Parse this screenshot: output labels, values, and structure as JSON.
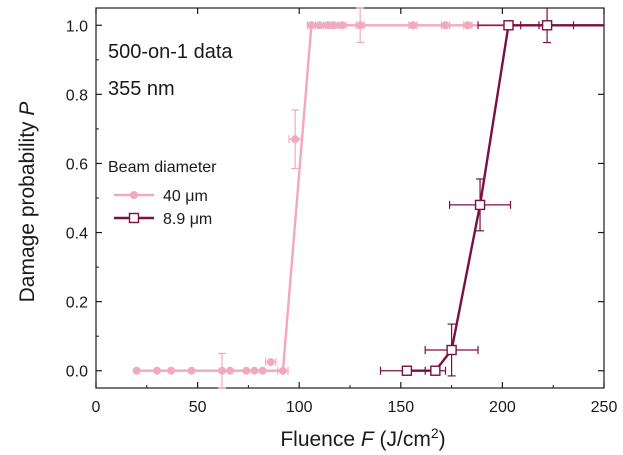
{
  "chart_data": {
    "type": "scatter",
    "annotations": [
      "500-on-1 data",
      "355 nm"
    ],
    "xlabel": {
      "prefix": "Fluence ",
      "symbol": "F",
      "unit_pre": " (J/cm",
      "unit_sup": "2",
      "unit_post": ")"
    },
    "ylabel": {
      "prefix": "Damage probability ",
      "symbol": "P"
    },
    "xlim": [
      0,
      250
    ],
    "ylim": [
      -0.05,
      1.05
    ],
    "xticks": [
      0,
      50,
      100,
      150,
      200,
      250
    ],
    "xtick_labels": [
      "0",
      "50",
      "100",
      "150",
      "200",
      "250"
    ],
    "yticks": [
      0.0,
      0.2,
      0.4,
      0.6,
      0.8,
      1.0
    ],
    "ytick_labels": [
      "0.0",
      "0.2",
      "0.4",
      "0.6",
      "0.8",
      "1.0"
    ],
    "legend": {
      "title": "Beam diameter",
      "placement": "center-left"
    },
    "grid": false,
    "series": [
      {
        "name": "40 μm",
        "color": "#f2a9bd",
        "marker": "filled-circle",
        "line": {
          "x": [
            20,
            92,
            106,
            250
          ],
          "y": [
            0,
            0,
            1,
            1
          ]
        },
        "points": [
          {
            "x": 20,
            "y": 0,
            "xerr": 0,
            "yerr": 0
          },
          {
            "x": 30,
            "y": 0,
            "xerr": 0,
            "yerr": 0
          },
          {
            "x": 37,
            "y": 0,
            "xerr": 0,
            "yerr": 0
          },
          {
            "x": 47,
            "y": 0,
            "xerr": 0,
            "yerr": 0
          },
          {
            "x": 62,
            "y": 0,
            "xerr": 0,
            "yerr": 0.05
          },
          {
            "x": 66,
            "y": 0,
            "xerr": 0,
            "yerr": 0
          },
          {
            "x": 74,
            "y": 0,
            "xerr": 0,
            "yerr": 0
          },
          {
            "x": 78,
            "y": 0,
            "xerr": 0,
            "yerr": 0
          },
          {
            "x": 82,
            "y": 0,
            "xerr": 0,
            "yerr": 0
          },
          {
            "x": 86,
            "y": 0.025,
            "xerr": 2.5,
            "yerr": 0
          },
          {
            "x": 92,
            "y": 0,
            "xerr": 2.5,
            "yerr": 0
          },
          {
            "x": 98,
            "y": 0.67,
            "xerr": 3,
            "yerr": 0.085
          },
          {
            "x": 106,
            "y": 1,
            "xerr": 2,
            "yerr": 0
          },
          {
            "x": 110,
            "y": 1,
            "xerr": 2,
            "yerr": 0
          },
          {
            "x": 114,
            "y": 1,
            "xerr": 2,
            "yerr": 0
          },
          {
            "x": 117,
            "y": 1,
            "xerr": 2,
            "yerr": 0
          },
          {
            "x": 121,
            "y": 1,
            "xerr": 2,
            "yerr": 0
          },
          {
            "x": 130,
            "y": 1,
            "xerr": 2,
            "yerr": 0.05
          },
          {
            "x": 156,
            "y": 1,
            "xerr": 2,
            "yerr": 0
          },
          {
            "x": 172,
            "y": 1,
            "xerr": 2,
            "yerr": 0
          },
          {
            "x": 183,
            "y": 1,
            "xerr": 2,
            "yerr": 0
          }
        ]
      },
      {
        "name": "8.9 μm",
        "color": "#7a1040",
        "marker": "open-square",
        "line": {
          "x": [
            153,
            167,
            175,
            189,
            203,
            250
          ],
          "y": [
            0,
            0,
            0.06,
            0.48,
            1,
            1
          ]
        },
        "points": [
          {
            "x": 153,
            "y": 0,
            "xerr": 13,
            "yerr": 0
          },
          {
            "x": 167,
            "y": 0,
            "xerr": 5,
            "yerr": 0
          },
          {
            "x": 175,
            "y": 0.06,
            "xerr": 13,
            "yerr": 0.075
          },
          {
            "x": 189,
            "y": 0.48,
            "xerr": 15,
            "yerr": 0.075
          },
          {
            "x": 203,
            "y": 1,
            "xerr": 15,
            "yerr": 0
          },
          {
            "x": 222,
            "y": 1,
            "xerr": 13,
            "yerr": 0.05
          }
        ]
      }
    ]
  }
}
